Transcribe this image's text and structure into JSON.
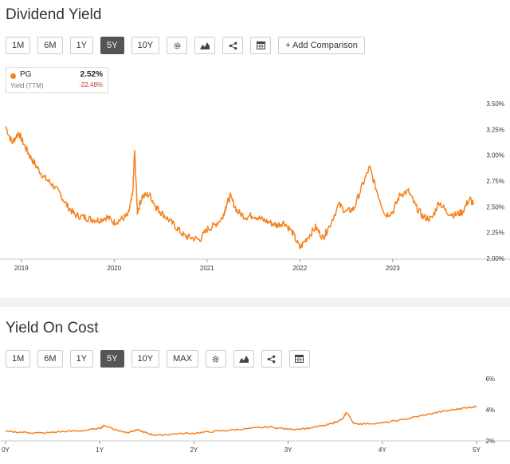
{
  "dividend_yield": {
    "title": "Dividend Yield",
    "ranges": [
      "1M",
      "6M",
      "1Y",
      "5Y",
      "10Y"
    ],
    "active_range": "5Y",
    "add_comparison_label": "+ Add Comparison",
    "legend": {
      "ticker": "PG",
      "subtitle": "Yield (TTM)",
      "value": "2.52%",
      "change": "-22.48%"
    }
  },
  "yield_on_cost": {
    "title": "Yield On Cost",
    "ranges": [
      "1M",
      "6M",
      "1Y",
      "5Y",
      "10Y",
      "MAX"
    ],
    "active_range": "5Y"
  },
  "colors": {
    "series": "#f5821f",
    "active_button": "#555555",
    "negative": "#d9342b"
  },
  "icons": [
    "gear-icon",
    "mountain-chart-icon",
    "share-icon",
    "table-icon"
  ],
  "chart_data": [
    {
      "type": "line",
      "title": "Dividend Yield",
      "series": [
        {
          "name": "PG",
          "x": [
            2018.83,
            2018.9,
            2018.97,
            2019.03,
            2019.1,
            2019.17,
            2019.25,
            2019.33,
            2019.42,
            2019.5,
            2019.58,
            2019.67,
            2019.75,
            2019.83,
            2019.92,
            2020.0,
            2020.08,
            2020.15,
            2020.2,
            2020.22,
            2020.25,
            2020.3,
            2020.38,
            2020.45,
            2020.5,
            2020.58,
            2020.67,
            2020.75,
            2020.83,
            2020.92,
            2021.0,
            2021.08,
            2021.17,
            2021.2,
            2021.25,
            2021.33,
            2021.42,
            2021.5,
            2021.58,
            2021.67,
            2021.75,
            2021.83,
            2021.92,
            2022.0,
            2022.08,
            2022.17,
            2022.25,
            2022.3,
            2022.42,
            2022.5,
            2022.58,
            2022.67,
            2022.75,
            2022.83,
            2022.92,
            2023.0,
            2023.08,
            2023.17,
            2023.25,
            2023.33,
            2023.42,
            2023.5,
            2023.58,
            2023.67,
            2023.75,
            2023.83,
            2023.87
          ],
          "values": [
            3.28,
            3.12,
            3.22,
            3.1,
            2.98,
            2.88,
            2.78,
            2.72,
            2.62,
            2.5,
            2.42,
            2.4,
            2.38,
            2.37,
            2.4,
            2.35,
            2.38,
            2.42,
            2.62,
            3.05,
            2.45,
            2.6,
            2.62,
            2.5,
            2.45,
            2.38,
            2.3,
            2.22,
            2.2,
            2.18,
            2.28,
            2.32,
            2.4,
            2.5,
            2.6,
            2.45,
            2.4,
            2.42,
            2.38,
            2.35,
            2.32,
            2.35,
            2.25,
            2.1,
            2.2,
            2.3,
            2.2,
            2.28,
            2.52,
            2.45,
            2.48,
            2.7,
            2.88,
            2.65,
            2.42,
            2.45,
            2.62,
            2.65,
            2.5,
            2.4,
            2.38,
            2.55,
            2.45,
            2.42,
            2.45,
            2.58,
            2.52
          ]
        }
      ],
      "x_ticks": [
        "2019",
        "2020",
        "2021",
        "2022",
        "2023"
      ],
      "y_ticks": [
        "2.00%",
        "2.25%",
        "2.50%",
        "2.75%",
        "3.00%",
        "3.25%",
        "3.50%"
      ],
      "ylim": [
        2.0,
        3.5
      ],
      "xlim": [
        2018.83,
        2023.92
      ],
      "grid": false
    },
    {
      "type": "line",
      "title": "Yield On Cost",
      "series": [
        {
          "name": "PG",
          "x": [
            0,
            0.2,
            0.4,
            0.6,
            0.8,
            1.0,
            1.05,
            1.2,
            1.3,
            1.4,
            1.5,
            1.6,
            1.8,
            2.0,
            2.2,
            2.4,
            2.6,
            2.8,
            3.0,
            3.2,
            3.4,
            3.5,
            3.58,
            3.62,
            3.7,
            3.8,
            4.0,
            4.2,
            4.4,
            4.6,
            4.8,
            4.9,
            5.0
          ],
          "values": [
            2.6,
            2.55,
            2.5,
            2.6,
            2.65,
            2.8,
            3.0,
            2.65,
            2.55,
            2.7,
            2.5,
            2.35,
            2.45,
            2.5,
            2.6,
            2.7,
            2.8,
            2.9,
            2.75,
            2.8,
            3.0,
            3.2,
            3.4,
            3.85,
            3.1,
            3.1,
            3.15,
            3.35,
            3.6,
            3.85,
            4.05,
            4.15,
            4.2
          ]
        }
      ],
      "x_ticks": [
        "0Y",
        "1Y",
        "2Y",
        "3Y",
        "4Y",
        "5Y"
      ],
      "y_ticks": [
        "2%",
        "4%",
        "6%"
      ],
      "ylim": [
        2,
        6
      ],
      "xlim": [
        0,
        5
      ],
      "grid": false
    }
  ]
}
